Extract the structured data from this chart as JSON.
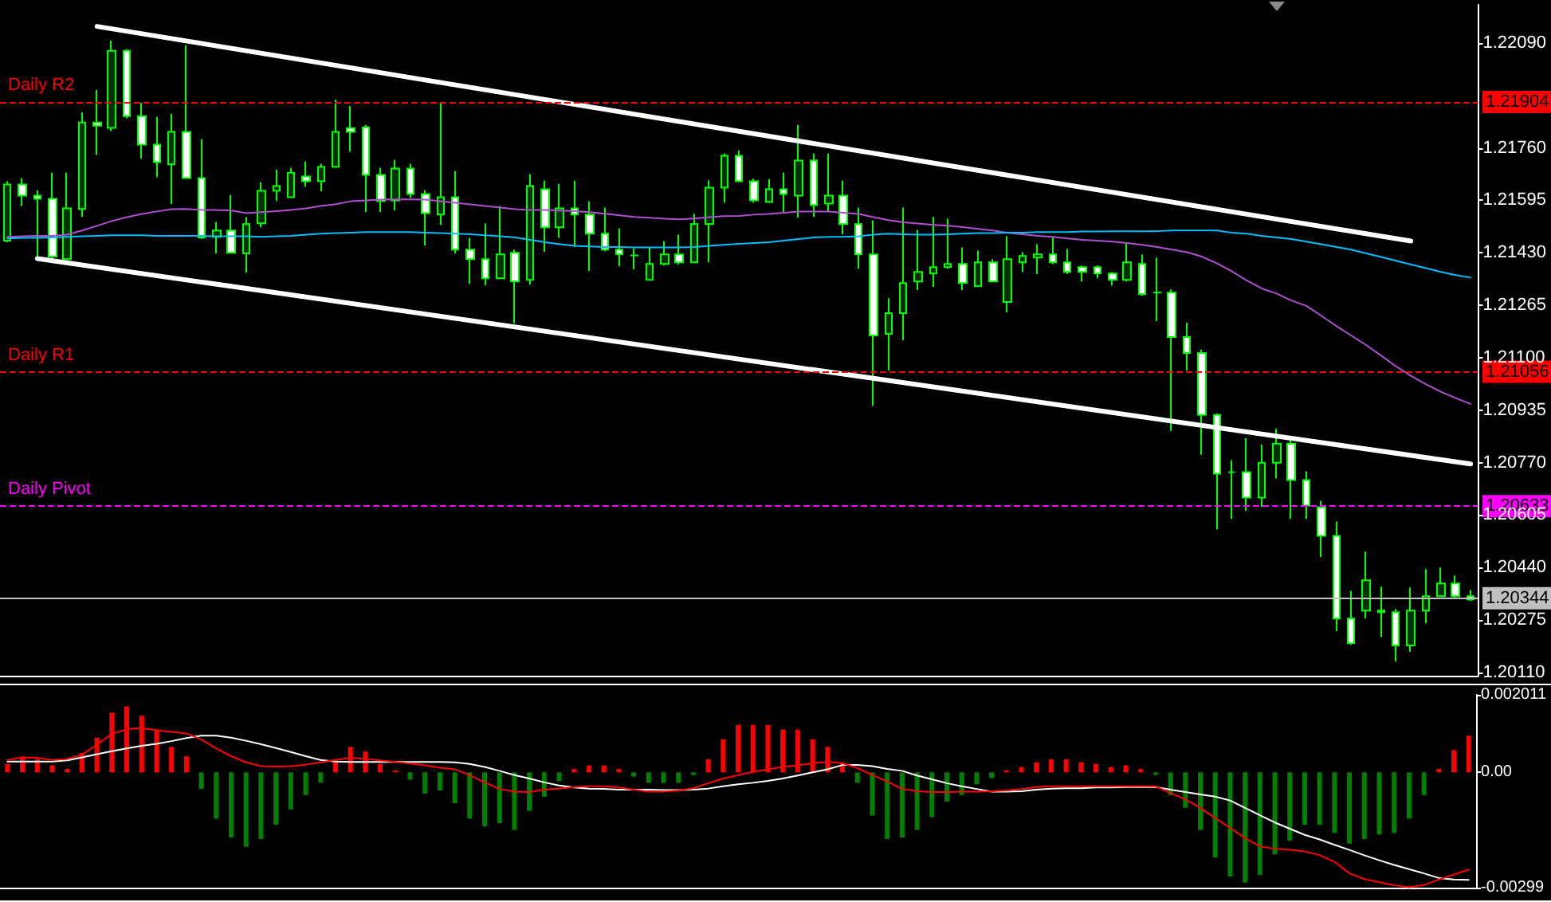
{
  "chart_data": [
    {
      "type": "candlestick",
      "categories": [
        null,
        null,
        null,
        null,
        null,
        null,
        null,
        null,
        null,
        null,
        null,
        null,
        null,
        null,
        null,
        null,
        null,
        null,
        null,
        null,
        null,
        null,
        null,
        null,
        null,
        null,
        null,
        null,
        null,
        null,
        null,
        null,
        null,
        null,
        null,
        null,
        null,
        null,
        null,
        null,
        null,
        null,
        null,
        null,
        null,
        null,
        null,
        null,
        null,
        null,
        null,
        null,
        null,
        null,
        null,
        null,
        null,
        null,
        null,
        null,
        null,
        null,
        null,
        null,
        null,
        null,
        null,
        null,
        null,
        null,
        null,
        null,
        null,
        null,
        null,
        null,
        null,
        null,
        null,
        null,
        null,
        null,
        null,
        null,
        null,
        null,
        null,
        null,
        null,
        null,
        null,
        null,
        null,
        null,
        null,
        null,
        null,
        null,
        null
      ],
      "ohlc": [
        [
          1.21468,
          1.21655,
          1.21463,
          1.21645
        ],
        [
          1.21645,
          1.21665,
          1.21577,
          1.2161
        ],
        [
          1.2161,
          1.21627,
          1.2141,
          1.216
        ],
        [
          1.216,
          1.21682,
          1.2141,
          1.21418
        ],
        [
          1.2141,
          1.21682,
          1.21407,
          1.2157
        ],
        [
          1.21568,
          1.21872,
          1.21543,
          1.2184
        ],
        [
          1.2184,
          1.21942,
          1.21738,
          1.2183
        ],
        [
          1.21823,
          1.22097,
          1.21813,
          1.22065
        ],
        [
          1.22065,
          1.2207,
          1.21853,
          1.2186
        ],
        [
          1.2186,
          1.21902,
          1.21727,
          1.2177
        ],
        [
          1.2177,
          1.21857,
          1.21668,
          1.21715
        ],
        [
          1.21708,
          1.21867,
          1.21583,
          1.2181
        ],
        [
          1.2181,
          1.22082,
          1.21665,
          1.21665
        ],
        [
          1.21665,
          1.21787,
          1.21473,
          1.21478
        ],
        [
          1.2148,
          1.21527,
          1.21428,
          1.215
        ],
        [
          1.215,
          1.21612,
          1.2143,
          1.2143
        ],
        [
          1.21428,
          1.21542,
          1.21368,
          1.2152
        ],
        [
          1.21523,
          1.21652,
          1.2151,
          1.21625
        ],
        [
          1.21625,
          1.21692,
          1.21593,
          1.2164
        ],
        [
          1.21605,
          1.21697,
          1.21602,
          1.21682
        ],
        [
          1.2167,
          1.21717,
          1.21638,
          1.21655
        ],
        [
          1.21655,
          1.2171,
          1.21623,
          1.217
        ],
        [
          1.217,
          1.21912,
          1.217,
          1.2181
        ],
        [
          1.21822,
          1.21892,
          1.21748,
          1.2181
        ],
        [
          1.21825,
          1.21832,
          1.21558,
          1.21675
        ],
        [
          1.21675,
          1.21697,
          1.21558,
          1.21593
        ],
        [
          1.21595,
          1.21722,
          1.21563,
          1.21695
        ],
        [
          1.21695,
          1.2171,
          1.21602,
          1.21615
        ],
        [
          1.21615,
          1.21627,
          1.21453,
          1.21555
        ],
        [
          1.2155,
          1.219,
          1.21518,
          1.21605
        ],
        [
          1.21605,
          1.21687,
          1.21428,
          1.2144
        ],
        [
          1.2144,
          1.21477,
          1.21333,
          1.2141
        ],
        [
          1.2141,
          1.21522,
          1.21328,
          1.2135
        ],
        [
          1.2135,
          1.21577,
          1.2135,
          1.21425
        ],
        [
          1.2143,
          1.2144,
          1.21208,
          1.2134
        ],
        [
          1.21345,
          1.21677,
          1.2133,
          1.2164
        ],
        [
          1.2163,
          1.21657,
          1.21433,
          1.2151
        ],
        [
          1.2151,
          1.21647,
          1.21477,
          1.2157
        ],
        [
          1.2157,
          1.21657,
          1.21448,
          1.2155
        ],
        [
          1.2155,
          1.21592,
          1.21373,
          1.2149
        ],
        [
          1.2149,
          1.21572,
          1.21435,
          1.2144
        ],
        [
          1.2144,
          1.21507,
          1.21388,
          1.21425
        ],
        [
          1.21422,
          1.21443,
          1.21378,
          1.21422
        ],
        [
          1.21345,
          1.21447,
          1.21345,
          1.21395
        ],
        [
          1.21395,
          1.21467,
          1.2139,
          1.21425
        ],
        [
          1.21425,
          1.21487,
          1.21393,
          1.214
        ],
        [
          1.214,
          1.21552,
          1.214,
          1.2152
        ],
        [
          1.2152,
          1.21658,
          1.214,
          1.21635
        ],
        [
          1.21635,
          1.21742,
          1.21588,
          1.21735
        ],
        [
          1.21735,
          1.21752,
          1.21655,
          1.21655
        ],
        [
          1.21655,
          1.21663,
          1.21588,
          1.21595
        ],
        [
          1.2159,
          1.21661,
          1.2159,
          1.2163
        ],
        [
          1.2163,
          1.21682,
          1.21555,
          1.21615
        ],
        [
          1.2161,
          1.21832,
          1.2154,
          1.2172
        ],
        [
          1.2172,
          1.21742,
          1.21543,
          1.2158
        ],
        [
          1.21585,
          1.21742,
          1.2156,
          1.2161
        ],
        [
          1.2161,
          1.21657,
          1.21488,
          1.2152
        ],
        [
          1.2152,
          1.21572,
          1.2138,
          1.21425
        ],
        [
          1.21425,
          1.21532,
          1.20948,
          1.2117
        ],
        [
          1.21175,
          1.21287,
          1.2106,
          1.2124
        ],
        [
          1.2124,
          1.21572,
          1.21155,
          1.21335
        ],
        [
          1.2134,
          1.21502,
          1.21313,
          1.2137
        ],
        [
          1.21365,
          1.21543,
          1.21323,
          1.21385
        ],
        [
          1.21385,
          1.21537,
          1.2138,
          1.21395
        ],
        [
          1.21395,
          1.21447,
          1.21313,
          1.21335
        ],
        [
          1.21325,
          1.21437,
          1.21325,
          1.214
        ],
        [
          1.214,
          1.2141,
          1.2134,
          1.2134
        ],
        [
          1.21275,
          1.21482,
          1.21243,
          1.2141
        ],
        [
          1.214,
          1.21432,
          1.2137,
          1.2142
        ],
        [
          1.21415,
          1.21457,
          1.21363,
          1.21425
        ],
        [
          1.21425,
          1.21482,
          1.21395,
          1.214
        ],
        [
          1.214,
          1.21442,
          1.21363,
          1.2137
        ],
        [
          1.21385,
          1.2139,
          1.2134,
          1.2137
        ],
        [
          1.21385,
          1.2139,
          1.2135,
          1.21365
        ],
        [
          1.21365,
          1.2137,
          1.21328,
          1.21345
        ],
        [
          1.21345,
          1.21462,
          1.2134,
          1.214
        ],
        [
          1.21395,
          1.21425,
          1.21295,
          1.213
        ],
        [
          1.21305,
          1.21415,
          1.21215,
          1.21305
        ],
        [
          1.21305,
          1.21315,
          1.2087,
          1.21165
        ],
        [
          1.21165,
          1.2121,
          1.2106,
          1.21115
        ],
        [
          1.21115,
          1.21125,
          1.20795,
          1.2092
        ],
        [
          1.2092,
          1.20925,
          1.2056,
          1.20735
        ],
        [
          1.2074,
          1.20777,
          1.20593,
          1.2074
        ],
        [
          1.2074,
          1.20847,
          1.20618,
          1.2066
        ],
        [
          1.2066,
          1.20827,
          1.2063,
          1.2077
        ],
        [
          1.2077,
          1.20877,
          1.2072,
          1.2083
        ],
        [
          1.2083,
          1.2085,
          1.20593,
          1.20715
        ],
        [
          1.20715,
          1.20743,
          1.20593,
          1.20635
        ],
        [
          1.2063,
          1.2065,
          1.20473,
          1.2054
        ],
        [
          1.2054,
          1.20585,
          1.2024,
          1.2028
        ],
        [
          1.2028,
          1.20367,
          1.20197,
          1.20202
        ],
        [
          1.20305,
          1.2049,
          1.2028,
          1.204
        ],
        [
          1.20305,
          1.2038,
          1.20222,
          1.203
        ],
        [
          1.203,
          1.2031,
          1.20145,
          1.20195
        ],
        [
          1.20195,
          1.20377,
          1.20175,
          1.20305
        ],
        [
          1.20305,
          1.20435,
          1.20265,
          1.2035
        ],
        [
          1.2035,
          1.2044,
          1.2035,
          1.2039
        ],
        [
          1.2039,
          1.20415,
          1.20345,
          1.2035
        ],
        [
          1.2035,
          1.2037,
          1.20335,
          1.2034
        ]
      ],
      "series": [
        {
          "type": "line",
          "color": "#b050d0",
          "values": [
            1.2148,
            1.21482,
            1.21483,
            1.21483,
            1.21487,
            1.215,
            1.21515,
            1.2153,
            1.21542,
            1.21552,
            1.2156,
            1.21567,
            1.21568,
            1.21565,
            1.21565,
            1.21563,
            1.21555,
            1.21558,
            1.21561,
            1.21565,
            1.2157,
            1.21577,
            1.21583,
            1.21592,
            1.21595,
            1.21597,
            1.21598,
            1.21598,
            1.21597,
            1.21592,
            1.21587,
            1.21582,
            1.21577,
            1.21572,
            1.21567,
            1.21565,
            1.21565,
            1.21563,
            1.21561,
            1.21558,
            1.21553,
            1.21548,
            1.21543,
            1.2154,
            1.21537,
            1.21535,
            1.21538,
            1.21542,
            1.21545,
            1.21546,
            1.2155,
            1.21552,
            1.21556,
            1.2156,
            1.2156,
            1.2156,
            1.21556,
            1.21552,
            1.21542,
            1.21533,
            1.21526,
            1.21522,
            1.21518,
            1.21515,
            1.21511,
            1.21505,
            1.215,
            1.21493,
            1.21488,
            1.21483,
            1.2148,
            1.21475,
            1.21471,
            1.21468,
            1.21465,
            1.21461,
            1.21455,
            1.21448,
            1.2144,
            1.21432,
            1.21418,
            1.21397,
            1.21372,
            1.21343,
            1.21318,
            1.21302,
            1.2128,
            1.21263,
            1.21232,
            1.212,
            1.2117,
            1.2114,
            1.21107,
            1.21073,
            1.21043,
            1.21017,
            1.20993,
            1.20973,
            1.20955
          ]
        },
        {
          "type": "line",
          "color": "#00bfff",
          "values": [
            1.21475,
            1.21477,
            1.21477,
            1.21478,
            1.2148,
            1.21482,
            1.21483,
            1.21485,
            1.21485,
            1.21485,
            1.21483,
            1.21483,
            1.21483,
            1.21483,
            1.21482,
            1.21482,
            1.21482,
            1.2148,
            1.21482,
            1.21483,
            1.21487,
            1.2149,
            1.21492,
            1.21493,
            1.21495,
            1.21495,
            1.21495,
            1.21495,
            1.21493,
            1.21492,
            1.2149,
            1.21488,
            1.21485,
            1.21482,
            1.21478,
            1.21471,
            1.21463,
            1.21457,
            1.21452,
            1.2145,
            1.21448,
            1.21448,
            1.21447,
            1.21447,
            1.21447,
            1.21447,
            1.21448,
            1.21452,
            1.21455,
            1.21458,
            1.21461,
            1.21463,
            1.21468,
            1.21473,
            1.21478,
            1.2148,
            1.2148,
            1.21482,
            1.21487,
            1.2149,
            1.21488,
            1.21487,
            1.21487,
            1.21488,
            1.2149,
            1.21492,
            1.21492,
            1.21493,
            1.21493,
            1.21495,
            1.21495,
            1.21495,
            1.21497,
            1.21497,
            1.21498,
            1.21498,
            1.21498,
            1.21498,
            1.215,
            1.215,
            1.215,
            1.215,
            1.21493,
            1.2149,
            1.21483,
            1.21478,
            1.21473,
            1.21465,
            1.21457,
            1.21448,
            1.2144,
            1.21428,
            1.21417,
            1.21405,
            1.21393,
            1.21382,
            1.2137,
            1.2136,
            1.21352
          ]
        },
        {
          "type": "line",
          "color": "#ffffff",
          "values": [
            null,
            null,
            null,
            null,
            null,
            null,
            1.22142,
            null,
            null,
            null,
            null,
            null,
            null,
            null,
            null,
            null,
            null,
            null,
            null,
            null,
            null,
            null,
            null,
            null,
            null,
            null,
            null,
            null,
            null,
            null,
            null,
            null,
            null,
            null,
            null,
            null,
            null,
            null,
            null,
            null,
            null,
            null,
            null,
            null,
            null,
            null,
            null,
            null,
            null,
            null,
            null,
            null,
            null,
            null,
            null,
            null,
            null,
            null,
            null,
            null,
            null,
            null,
            null,
            null,
            null,
            null,
            null,
            null,
            null,
            null,
            null,
            null,
            null,
            null,
            null,
            null,
            null,
            null,
            null,
            null,
            null,
            null,
            null,
            null,
            null,
            null,
            null,
            null,
            null,
            null,
            null,
            null,
            null,
            null,
            1.21467,
            null,
            null,
            null,
            null
          ]
        },
        {
          "type": "line",
          "color": "#ffffff",
          "values": [
            null,
            null,
            1.21412,
            null,
            null,
            null,
            null,
            null,
            null,
            null,
            null,
            null,
            null,
            null,
            null,
            null,
            null,
            null,
            null,
            null,
            null,
            null,
            null,
            null,
            null,
            null,
            null,
            null,
            null,
            null,
            null,
            null,
            null,
            null,
            null,
            null,
            null,
            null,
            null,
            null,
            null,
            null,
            null,
            null,
            null,
            null,
            null,
            null,
            null,
            null,
            null,
            null,
            null,
            null,
            null,
            null,
            null,
            null,
            null,
            null,
            null,
            null,
            null,
            null,
            null,
            null,
            null,
            null,
            null,
            null,
            null,
            null,
            null,
            null,
            null,
            null,
            null,
            null,
            null,
            null,
            null,
            null,
            null,
            null,
            null,
            null,
            null,
            null,
            null,
            null,
            null,
            null,
            null,
            null,
            null,
            null,
            null,
            null,
            1.20766
          ]
        }
      ],
      "ylim": [
        1.201,
        1.2221
      ],
      "yticks": [
        {
          "value": 1.2011,
          "label": "1.20110"
        },
        1.20275,
        {
          "value": 1.2044,
          "label": "1.20440"
        },
        1.20605,
        {
          "value": 1.2077,
          "label": "1.20770"
        },
        1.20935,
        {
          "value": 1.211,
          "label": "1.21100"
        },
        1.21265,
        {
          "value": 1.2143,
          "label": "1.21430"
        },
        1.21595,
        {
          "value": 1.2176,
          "label": "1.21760"
        },
        {
          "value": 1.2209,
          "label": "1.22090"
        }
      ],
      "ref_lines": [
        {
          "axis": "y",
          "value": 1.21904,
          "label": "Daily R2",
          "color": "#ff0000",
          "line_style": "dashed"
        },
        {
          "axis": "y",
          "value": 1.21056,
          "label": "Daily R1",
          "color": "#ff0000",
          "line_style": "dashed"
        },
        {
          "axis": "y",
          "value": 1.20633,
          "label": "Daily Pivot",
          "color": "#ff00ff",
          "line_style": "dashed"
        },
        {
          "axis": "y",
          "value": 1.20344,
          "color": "#c0c0c0",
          "line_style": "solid"
        }
      ],
      "annotations": [
        "1.21904",
        "1.21056",
        "1.20633",
        "1.20344"
      ],
      "tick_labels": "y"
    },
    {
      "type": "bar",
      "categories": [
        null,
        null,
        null,
        null,
        null,
        null,
        null,
        null,
        null,
        null,
        null,
        null,
        null,
        null,
        null,
        null,
        null,
        null,
        null,
        null,
        null,
        null,
        null,
        null,
        null,
        null,
        null,
        null,
        null,
        null,
        null,
        null,
        null,
        null,
        null,
        null,
        null,
        null,
        null,
        null,
        null,
        null,
        null,
        null,
        null,
        null,
        null,
        null,
        null,
        null,
        null,
        null,
        null,
        null,
        null,
        null,
        null,
        null,
        null,
        null,
        null,
        null,
        null,
        null,
        null,
        null,
        null,
        null,
        null,
        null,
        null,
        null,
        null,
        null,
        null,
        null,
        null,
        null,
        null,
        null,
        null,
        null,
        null,
        null,
        null,
        null,
        null,
        null,
        null,
        null,
        null,
        null,
        null,
        null,
        null,
        null,
        null,
        null,
        null
      ],
      "series": [
        {
          "values": [
            0.00022,
            0.00041,
            0.00034,
            0.00018,
            9e-05,
            0.0005,
            0.0009,
            0.00155,
            0.00171,
            0.00147,
            0.00111,
            0.00066,
            0.00042,
            -0.00043,
            -0.0012,
            -0.00169,
            -0.00193,
            -0.00173,
            -0.00136,
            -0.00096,
            -0.00059,
            -0.00027,
            0.00034,
            0.00066,
            0.00054,
            0.00022,
            5e-05,
            -0.00019,
            -0.00055,
            -0.00047,
            -0.0008,
            -0.0012,
            -0.0014,
            -0.00132,
            -0.00149,
            -0.001,
            -0.00063,
            -0.00023,
            9e-05,
            0.00018,
            0.00018,
            9e-05,
            -0.00011,
            -0.00027,
            -0.00027,
            -0.00027,
            -7e-05,
            0.00034,
            0.00086,
            0.00123,
            0.00123,
            0.00123,
            0.00111,
            0.00111,
            0.00086,
            0.00066,
            0.00026,
            -0.00027,
            -0.00112,
            -0.00173,
            -0.00169,
            -0.00149,
            -0.00116,
            -0.00076,
            -0.00059,
            -0.00031,
            -0.00015,
            5e-05,
            0.00014,
            0.00026,
            0.00034,
            0.00034,
            0.00026,
            0.00022,
            0.00014,
            0.00018,
            9e-05,
            -7e-05,
            -0.00059,
            -0.00092,
            -0.00149,
            -0.00221,
            -0.0027,
            -0.00286,
            -0.00266,
            -0.00213,
            -0.00177,
            -0.00136,
            -0.00136,
            -0.00157,
            -0.00185,
            -0.00173,
            -0.00161,
            -0.00157,
            -0.0012,
            -0.00059,
            9e-05,
            0.00058,
            0.00095
          ],
          "colors": [
            "#ff0000",
            "#ff0000",
            "#ff0000",
            "#ff0000",
            "#ff0000",
            "#ff0000",
            "#ff0000",
            "#ff0000",
            "#ff0000",
            "#ff0000",
            "#ff0000",
            "#ff0000",
            "#ff0000",
            "#008000",
            "#008000",
            "#008000",
            "#008000",
            "#008000",
            "#008000",
            "#008000",
            "#008000",
            "#008000",
            "#ff0000",
            "#ff0000",
            "#ff0000",
            "#ff0000",
            "#ff0000",
            "#008000",
            "#008000",
            "#008000",
            "#008000",
            "#008000",
            "#008000",
            "#008000",
            "#008000",
            "#008000",
            "#008000",
            "#008000",
            "#ff0000",
            "#ff0000",
            "#ff0000",
            "#ff0000",
            "#008000",
            "#008000",
            "#008000",
            "#008000",
            "#008000",
            "#ff0000",
            "#ff0000",
            "#ff0000",
            "#ff0000",
            "#ff0000",
            "#ff0000",
            "#ff0000",
            "#ff0000",
            "#ff0000",
            "#ff0000",
            "#008000",
            "#008000",
            "#008000",
            "#008000",
            "#008000",
            "#008000",
            "#008000",
            "#008000",
            "#008000",
            "#008000",
            "#ff0000",
            "#ff0000",
            "#ff0000",
            "#ff0000",
            "#ff0000",
            "#ff0000",
            "#ff0000",
            "#ff0000",
            "#ff0000",
            "#ff0000",
            "#008000",
            "#008000",
            "#008000",
            "#008000",
            "#008000",
            "#008000",
            "#008000",
            "#008000",
            "#008000",
            "#008000",
            "#008000",
            "#008000",
            "#008000",
            "#008000",
            "#008000",
            "#008000",
            "#008000",
            "#008000",
            "#008000",
            "#ff0000",
            "#ff0000",
            "#ff0000"
          ]
        },
        {
          "type": "line",
          "color": "#ffffff",
          "values": [
            0.00028,
            0.00028,
            0.00028,
            0.00028,
            0.00031,
            0.00039,
            0.00047,
            0.00055,
            0.00062,
            0.00069,
            0.00074,
            0.00081,
            0.00089,
            0.00095,
            0.00095,
            0.0009,
            0.00082,
            0.00073,
            0.00063,
            0.00053,
            0.00042,
            0.00032,
            0.00028,
            0.00027,
            0.00027,
            0.00027,
            0.00027,
            0.00027,
            0.00027,
            0.00027,
            0.00026,
            0.00022,
            0.00014,
            4e-05,
            -7e-05,
            -0.00016,
            -0.00026,
            -0.00034,
            -0.00039,
            -0.00042,
            -0.00043,
            -0.00045,
            -0.00045,
            -0.00045,
            -0.00046,
            -0.00046,
            -0.00045,
            -0.00042,
            -0.00036,
            -0.00031,
            -0.00027,
            -0.00022,
            -0.00016,
            -8e-05,
            0,
            8e-05,
            0.00019,
            0.00019,
            0.00016,
            9e-05,
            4e-05,
            -8e-05,
            -0.00018,
            -0.00028,
            -0.00036,
            -0.00043,
            -0.0005,
            -0.0005,
            -0.00049,
            -0.00045,
            -0.00042,
            -0.00041,
            -0.00041,
            -0.00039,
            -0.00039,
            -0.00038,
            -0.00038,
            -0.00038,
            -0.00045,
            -0.00051,
            -0.00057,
            -0.00063,
            -0.00073,
            -0.00092,
            -0.00111,
            -0.0013,
            -0.00146,
            -0.00162,
            -0.00174,
            -0.00188,
            -0.00201,
            -0.00215,
            -0.00228,
            -0.0024,
            -0.00251,
            -0.00262,
            -0.00274,
            -0.00278,
            -0.00279
          ]
        },
        {
          "type": "line",
          "color": "#ff0000",
          "values": [
            0.00032,
            0.00039,
            0.00038,
            0.00032,
            0.00035,
            0.00046,
            0.00072,
            0.001,
            0.00112,
            0.00115,
            0.00109,
            0.00105,
            0.00101,
            0.00085,
            0.00062,
            0.00042,
            0.00026,
            0.00016,
            0.00015,
            0.00016,
            0.0002,
            0.00026,
            0.00032,
            0.00038,
            0.00035,
            0.00031,
            0.00027,
            0.00023,
            0.00018,
            0.00012,
            8e-05,
            -8e-05,
            -0.00026,
            -0.00043,
            -0.0005,
            -0.00051,
            -0.00045,
            -0.00042,
            -0.00038,
            -0.00036,
            -0.00036,
            -0.00039,
            -0.00045,
            -0.0005,
            -0.0005,
            -0.00047,
            -0.00041,
            -0.00028,
            -0.00016,
            -7e-05,
            1e-05,
            8e-05,
            0.00014,
            0.00018,
            0.00024,
            0.00027,
            0.00024,
            0.00011,
            -7e-05,
            -0.00024,
            -0.00043,
            -0.00049,
            -0.00051,
            -0.00051,
            -0.0005,
            -0.0005,
            -0.00049,
            -0.00047,
            -0.00043,
            -0.00038,
            -0.00036,
            -0.00036,
            -0.00036,
            -0.00036,
            -0.00036,
            -0.00036,
            -0.00036,
            -0.00036,
            -0.00054,
            -0.0007,
            -0.00092,
            -0.00119,
            -0.00144,
            -0.00171,
            -0.00192,
            -0.00198,
            -0.00201,
            -0.00205,
            -0.00215,
            -0.00232,
            -0.00262,
            -0.00277,
            -0.00285,
            -0.00293,
            -0.00298,
            -0.00292,
            -0.00278,
            -0.00265,
            -0.00252
          ]
        }
      ],
      "ylim": [
        -0.00299,
        0.002011
      ],
      "yticks": [
        0.002011,
        {
          "value": 0,
          "label": "0.00"
        },
        -0.00299
      ],
      "tick_labels": "y"
    }
  ]
}
